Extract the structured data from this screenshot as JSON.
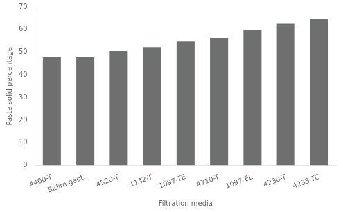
{
  "chart_data": {
    "type": "bar",
    "categories": [
      "4400-T",
      "Bidim geot.",
      "4520-T",
      "1142-T",
      "1097-TE",
      "4710-T",
      "1097-EL",
      "4230-T",
      "4233-TC"
    ],
    "values": [
      47.8,
      48.0,
      50.5,
      52.2,
      54.7,
      56.3,
      59.8,
      62.5,
      64.8
    ],
    "color": "#6e7070",
    "xlabel": "Filtration media",
    "ylabel": "Paste solid percentage",
    "ylim": [
      0,
      70
    ],
    "yticks": [
      0,
      10,
      20,
      30,
      40,
      50,
      60,
      70
    ],
    "grid": false
  }
}
